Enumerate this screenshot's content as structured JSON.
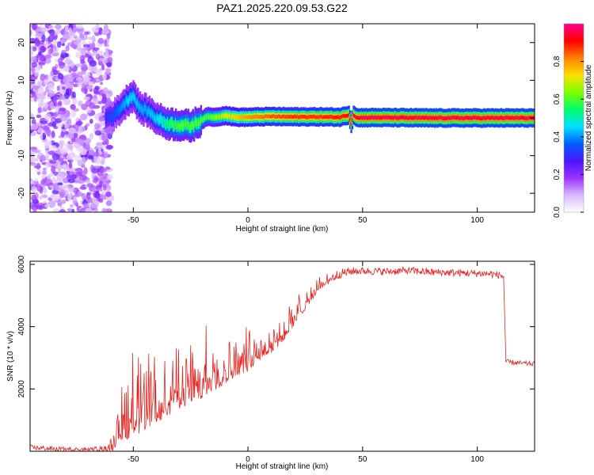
{
  "title": "PAZ1.2025.220.09.53.G22",
  "chart_data": [
    {
      "type": "heatmap",
      "xlabel": "Height of straight line (km)",
      "ylabel": "Frequency (Hz)",
      "xlim": [
        -95,
        125
      ],
      "ylim": [
        -25,
        25
      ],
      "xticks": [
        -50,
        0,
        50,
        100
      ],
      "yticks": [
        20,
        10,
        0,
        -10,
        -20
      ],
      "colorbar": {
        "label": "Normalized spectral amplitude",
        "range": [
          0,
          1
        ],
        "ticks": [
          0.0,
          0.2,
          0.4,
          0.6,
          0.8
        ],
        "colors": [
          "#ffffff",
          "#d9b8ff",
          "#9a32ff",
          "#4a16ff",
          "#0060ff",
          "#00e0ff",
          "#00ff6a",
          "#7cff00",
          "#ffe000",
          "#ff8000",
          "#ff0000",
          "#ff0090"
        ]
      },
      "ridge": {
        "x": [
          -62,
          -58,
          -55,
          -52,
          -50,
          -47,
          -44,
          -40,
          -35,
          -30,
          -25,
          -22,
          -18,
          -14,
          -10,
          -5,
          0,
          10,
          20,
          30,
          40,
          44,
          45,
          46,
          48,
          50,
          60,
          80,
          100,
          125
        ],
        "frequency": [
          0.0,
          1.0,
          3.0,
          5.0,
          6.0,
          2.5,
          2.0,
          0.0,
          -1.5,
          -1.8,
          -2.2,
          -1.2,
          0.3,
          0.2,
          0.7,
          0.2,
          0.2,
          0.4,
          0.3,
          0.3,
          0.2,
          0.8,
          -1.5,
          0.8,
          0.0,
          0.1,
          0.1,
          0.0,
          0.0,
          0.0
        ],
        "amplitude": [
          0.3,
          0.35,
          0.4,
          0.45,
          0.45,
          0.42,
          0.42,
          0.45,
          0.55,
          0.6,
          0.6,
          0.6,
          0.6,
          0.65,
          0.7,
          0.75,
          0.8,
          0.85,
          0.88,
          0.88,
          0.9,
          0.9,
          0.9,
          0.9,
          0.92,
          0.95,
          0.95,
          0.95,
          0.95,
          0.95
        ]
      },
      "noise_region": {
        "x": [
          -95,
          -60
        ],
        "frequency": [
          -25,
          25
        ],
        "amplitude_range": [
          0.05,
          0.2
        ]
      }
    },
    {
      "type": "line",
      "xlabel": "Height of straight line (km)",
      "ylabel": "SNR (10 * v/v)",
      "xlim": [
        -95,
        125
      ],
      "ylim": [
        0,
        6100
      ],
      "xticks": [
        -50,
        0,
        50,
        100
      ],
      "yticks": [
        2000,
        4000,
        6000
      ],
      "color": "#e8231f",
      "series": [
        {
          "x": [
            -95,
            -80,
            -70,
            -62,
            -58,
            -56,
            -52,
            -48,
            -45,
            -40,
            -35,
            -30,
            -25,
            -20,
            -15,
            -10,
            -5,
            0,
            5,
            10,
            15,
            20,
            25,
            30,
            35,
            40,
            45,
            50,
            60,
            70,
            80,
            90,
            100,
            105,
            110,
            111.5,
            112.5,
            115,
            120,
            125
          ],
          "base": [
            120,
            60,
            60,
            80,
            300,
            450,
            900,
            1000,
            1100,
            1300,
            1500,
            1750,
            1850,
            2050,
            2250,
            2450,
            2700,
            2800,
            3150,
            3350,
            3650,
            4150,
            4650,
            5150,
            5500,
            5700,
            5780,
            5790,
            5770,
            5800,
            5750,
            5730,
            5710,
            5700,
            5650,
            5600,
            2860,
            2850,
            2820,
            2800
          ],
          "amp": [
            80,
            80,
            60,
            100,
            350,
            900,
            1700,
            1600,
            1500,
            1400,
            1300,
            1300,
            1250,
            1200,
            1100,
            1000,
            900,
            800,
            750,
            700,
            600,
            500,
            350,
            250,
            200,
            150,
            130,
            120,
            120,
            120,
            120,
            120,
            120,
            120,
            120,
            120,
            100,
            80,
            80,
            80
          ]
        }
      ]
    }
  ]
}
